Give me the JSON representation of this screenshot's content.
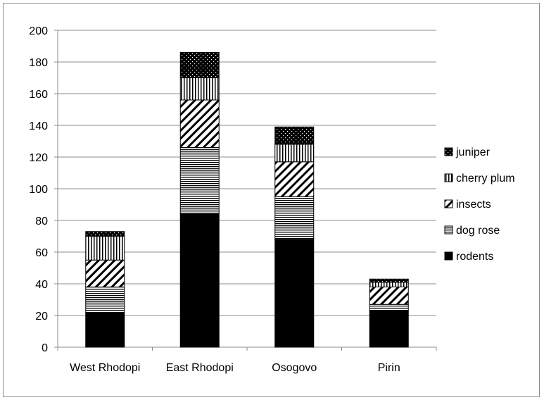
{
  "chart_data": {
    "type": "bar",
    "stacked": true,
    "title": "",
    "xlabel": "",
    "ylabel": "",
    "categories": [
      "West Rhodopi",
      "East Rhodopi",
      "Osogovo",
      "Pirin"
    ],
    "ylim": [
      0,
      200
    ],
    "yticks": [
      0,
      20,
      40,
      60,
      80,
      100,
      120,
      140,
      160,
      180,
      200
    ],
    "grid": true,
    "legend_position": "right",
    "series": [
      {
        "name": "rodents",
        "pattern": "solid",
        "values": [
          22,
          84,
          68,
          23
        ]
      },
      {
        "name": "dog rose",
        "pattern": "horizontal-lines",
        "values": [
          16,
          42,
          27,
          4
        ]
      },
      {
        "name": "insects",
        "pattern": "diagonal-lines",
        "values": [
          17,
          30,
          22,
          11
        ]
      },
      {
        "name": "cherry plum",
        "pattern": "vertical-lines",
        "values": [
          15,
          14,
          11,
          3
        ]
      },
      {
        "name": "juniper",
        "pattern": "dots",
        "values": [
          3,
          16,
          11,
          2
        ]
      }
    ],
    "colors": {
      "bar": "#000000",
      "grid": "#8c8c8c",
      "frame": "#8c8c8c"
    }
  }
}
